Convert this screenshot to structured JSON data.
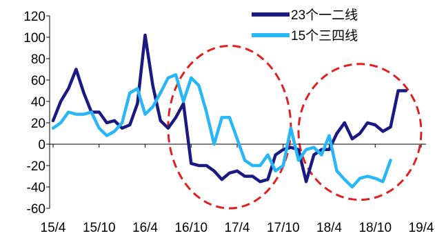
{
  "chart_data": {
    "type": "line",
    "title": "",
    "xlabel": "",
    "ylabel": "",
    "ylim": [
      -60,
      120
    ],
    "yticks": [
      -60,
      -40,
      -20,
      0,
      20,
      40,
      60,
      80,
      100,
      120
    ],
    "x_tick_labels": [
      "15/4",
      "15/10",
      "16/4",
      "16/10",
      "17/4",
      "17/10",
      "18/4",
      "18/10",
      "19/4"
    ],
    "x_start": "2015-04",
    "x_end": "2019-04",
    "grid": false,
    "legend_position": "top-right",
    "series": [
      {
        "name": "23个一二线",
        "color": "#1a1a80",
        "points": [
          [
            "2015-04",
            22
          ],
          [
            "2015-05",
            40
          ],
          [
            "2015-06",
            52
          ],
          [
            "2015-07",
            70
          ],
          [
            "2015-08",
            48
          ],
          [
            "2015-09",
            30
          ],
          [
            "2015-10",
            30
          ],
          [
            "2015-11",
            20
          ],
          [
            "2015-12",
            22
          ],
          [
            "2016-01",
            15
          ],
          [
            "2016-02",
            18
          ],
          [
            "2016-03",
            38
          ],
          [
            "2016-04",
            102
          ],
          [
            "2016-05",
            55
          ],
          [
            "2016-06",
            22
          ],
          [
            "2016-07",
            15
          ],
          [
            "2016-08",
            25
          ],
          [
            "2016-09",
            38
          ],
          [
            "2016-10",
            -18
          ],
          [
            "2016-11",
            -20
          ],
          [
            "2016-12",
            -20
          ],
          [
            "2017-01",
            -25
          ],
          [
            "2017-02",
            -33
          ],
          [
            "2017-03",
            -27
          ],
          [
            "2017-04",
            -25
          ],
          [
            "2017-05",
            -30
          ],
          [
            "2017-06",
            -30
          ],
          [
            "2017-07",
            -35
          ],
          [
            "2017-08",
            -33
          ],
          [
            "2017-09",
            -10
          ],
          [
            "2017-10",
            -5
          ],
          [
            "2017-11",
            -3
          ],
          [
            "2017-12",
            -5
          ],
          [
            "2018-01",
            -35
          ],
          [
            "2018-02",
            -10
          ],
          [
            "2018-03",
            -5
          ],
          [
            "2018-04",
            -5
          ],
          [
            "2018-05",
            10
          ],
          [
            "2018-06",
            20
          ],
          [
            "2018-07",
            5
          ],
          [
            "2018-08",
            10
          ],
          [
            "2018-09",
            20
          ],
          [
            "2018-10",
            18
          ],
          [
            "2018-11",
            12
          ],
          [
            "2018-12",
            16
          ],
          [
            "2019-01",
            50
          ],
          [
            "2019-02",
            50
          ]
        ]
      },
      {
        "name": "15个三四线",
        "color": "#29b6f6",
        "points": [
          [
            "2015-04",
            15
          ],
          [
            "2015-05",
            20
          ],
          [
            "2015-06",
            30
          ],
          [
            "2015-07",
            28
          ],
          [
            "2015-08",
            28
          ],
          [
            "2015-09",
            30
          ],
          [
            "2015-10",
            15
          ],
          [
            "2015-11",
            8
          ],
          [
            "2015-12",
            12
          ],
          [
            "2016-01",
            20
          ],
          [
            "2016-02",
            48
          ],
          [
            "2016-03",
            52
          ],
          [
            "2016-04",
            28
          ],
          [
            "2016-05",
            35
          ],
          [
            "2016-06",
            48
          ],
          [
            "2016-07",
            62
          ],
          [
            "2016-08",
            65
          ],
          [
            "2016-09",
            40
          ],
          [
            "2016-10",
            62
          ],
          [
            "2016-11",
            55
          ],
          [
            "2016-12",
            30
          ],
          [
            "2017-01",
            0
          ],
          [
            "2017-02",
            25
          ],
          [
            "2017-03",
            25
          ],
          [
            "2017-04",
            5
          ],
          [
            "2017-05",
            -15
          ],
          [
            "2017-06",
            -20
          ],
          [
            "2017-07",
            -20
          ],
          [
            "2017-08",
            -10
          ],
          [
            "2017-09",
            -25
          ],
          [
            "2017-10",
            -20
          ],
          [
            "2017-11",
            15
          ],
          [
            "2017-12",
            -15
          ],
          [
            "2018-01",
            -5
          ],
          [
            "2018-02",
            -3
          ],
          [
            "2018-03",
            -10
          ],
          [
            "2018-04",
            8
          ],
          [
            "2018-05",
            -25
          ],
          [
            "2018-06",
            -33
          ],
          [
            "2018-07",
            -40
          ],
          [
            "2018-08",
            -32
          ],
          [
            "2018-09",
            -30
          ],
          [
            "2018-10",
            -32
          ],
          [
            "2018-11",
            -35
          ],
          [
            "2018-12",
            -15
          ]
        ]
      }
    ],
    "annotations": [
      {
        "shape": "ellipse",
        "style": "dashed",
        "color": "#e02020",
        "x_range": [
          "2016-07",
          "2017-11"
        ],
        "y_range": [
          -60,
          92
        ]
      },
      {
        "shape": "ellipse",
        "style": "dashed",
        "color": "#e02020",
        "x_range": [
          "2017-12",
          "2019-04"
        ],
        "y_range": [
          -52,
          75
        ]
      }
    ]
  }
}
